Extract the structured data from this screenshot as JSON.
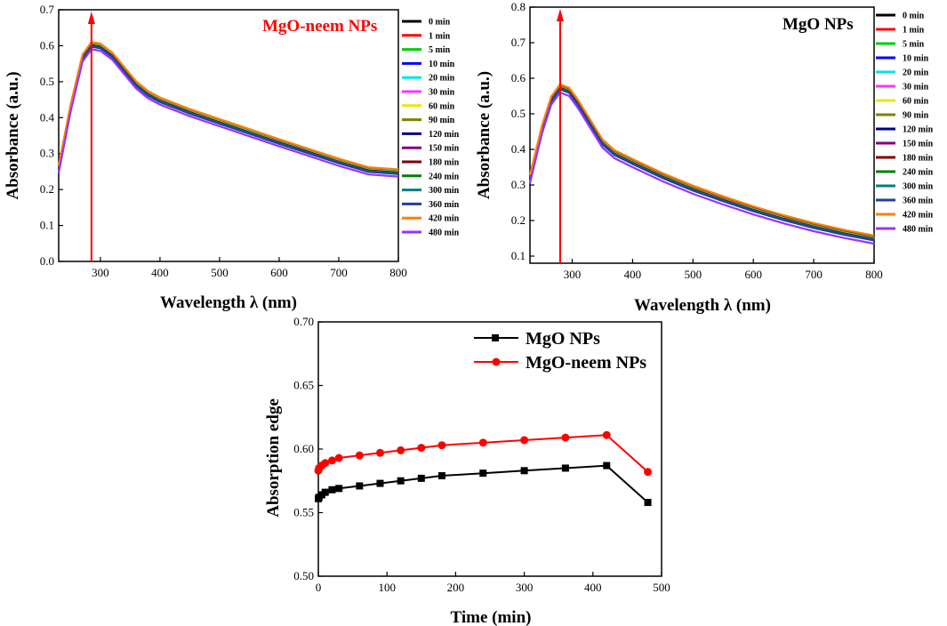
{
  "chart_data": [
    {
      "type": "line",
      "title": "MgO-neem NPs",
      "xlabel": "Wavelength λ (nm)",
      "ylabel": "Absorbance (a.u.)",
      "xlim": [
        230,
        800
      ],
      "ylim": [
        0.0,
        0.7
      ],
      "xticks": [
        "300",
        "400",
        "500",
        "600",
        "700",
        "800"
      ],
      "yticks": [
        "0.0",
        "0.1",
        "0.2",
        "0.3",
        "0.4",
        "0.5",
        "0.6",
        "0.7"
      ],
      "peak_marker_x": 285,
      "legend_position": "right",
      "x": [
        230,
        250,
        270,
        285,
        300,
        320,
        340,
        360,
        380,
        400,
        450,
        500,
        550,
        600,
        650,
        700,
        750,
        800
      ],
      "base_curve": [
        0.25,
        0.42,
        0.56,
        0.594,
        0.59,
        0.565,
        0.525,
        0.485,
        0.458,
        0.44,
        0.408,
        0.38,
        0.352,
        0.324,
        0.297,
        0.27,
        0.246,
        0.24
      ],
      "series": [
        {
          "name": "0 min",
          "color": "#000000",
          "offset": 0.012
        },
        {
          "name": "1 min",
          "color": "#ff0000",
          "offset": 0.011
        },
        {
          "name": "5 min",
          "color": "#00cc00",
          "offset": 0.01
        },
        {
          "name": "10 min",
          "color": "#0000ff",
          "offset": 0.009
        },
        {
          "name": "20 min",
          "color": "#00e5e5",
          "offset": 0.009
        },
        {
          "name": "30 min",
          "color": "#ff33ff",
          "offset": 0.008
        },
        {
          "name": "60 min",
          "color": "#e8e800",
          "offset": 0.008
        },
        {
          "name": "90 min",
          "color": "#808000",
          "offset": 0.007
        },
        {
          "name": "120 min",
          "color": "#000080",
          "offset": 0.007
        },
        {
          "name": "150 min",
          "color": "#800080",
          "offset": 0.006
        },
        {
          "name": "180 min",
          "color": "#800000",
          "offset": 0.006
        },
        {
          "name": "240 min",
          "color": "#008000",
          "offset": 0.005
        },
        {
          "name": "300 min",
          "color": "#008080",
          "offset": 0.004
        },
        {
          "name": "360 min",
          "color": "#1f3fa0",
          "offset": 0.003
        },
        {
          "name": "420 min",
          "color": "#ff8000",
          "offset": 0.016
        },
        {
          "name": "480 min",
          "color": "#9933ff",
          "offset": -0.004
        }
      ]
    },
    {
      "type": "line",
      "title": "MgO NPs",
      "xlabel": "Wavelength λ (nm)",
      "ylabel": "Absorbance (a.u.)",
      "xlim": [
        230,
        800
      ],
      "ylim": [
        0.08,
        0.8
      ],
      "xticks": [
        "300",
        "400",
        "500",
        "600",
        "700",
        "800"
      ],
      "yticks": [
        "0.1",
        "0.2",
        "0.3",
        "0.4",
        "0.5",
        "0.6",
        "0.7",
        "0.8"
      ],
      "peak_marker_x": 280,
      "legend_position": "right",
      "x": [
        230,
        250,
        265,
        280,
        295,
        310,
        330,
        350,
        370,
        400,
        450,
        500,
        550,
        600,
        650,
        700,
        750,
        800
      ],
      "base_curve": [
        0.31,
        0.45,
        0.53,
        0.565,
        0.555,
        0.52,
        0.465,
        0.41,
        0.38,
        0.355,
        0.315,
        0.28,
        0.25,
        0.222,
        0.197,
        0.175,
        0.156,
        0.14
      ],
      "series": [
        {
          "name": "0 min",
          "color": "#000000",
          "offset": 0.013
        },
        {
          "name": "1 min",
          "color": "#ff0000",
          "offset": 0.012
        },
        {
          "name": "5 min",
          "color": "#00cc00",
          "offset": 0.011
        },
        {
          "name": "10 min",
          "color": "#0000ff",
          "offset": 0.01
        },
        {
          "name": "20 min",
          "color": "#00e5e5",
          "offset": 0.01
        },
        {
          "name": "30 min",
          "color": "#ff33ff",
          "offset": 0.009
        },
        {
          "name": "60 min",
          "color": "#e8e800",
          "offset": 0.009
        },
        {
          "name": "90 min",
          "color": "#808000",
          "offset": 0.008
        },
        {
          "name": "120 min",
          "color": "#000080",
          "offset": 0.008
        },
        {
          "name": "150 min",
          "color": "#800080",
          "offset": 0.007
        },
        {
          "name": "180 min",
          "color": "#800000",
          "offset": 0.007
        },
        {
          "name": "240 min",
          "color": "#008000",
          "offset": 0.006
        },
        {
          "name": "300 min",
          "color": "#008080",
          "offset": 0.005
        },
        {
          "name": "360 min",
          "color": "#1f3fa0",
          "offset": 0.004
        },
        {
          "name": "420 min",
          "color": "#ff8000",
          "offset": 0.018
        },
        {
          "name": "480 min",
          "color": "#9933ff",
          "offset": -0.005
        }
      ]
    },
    {
      "type": "line",
      "title": "",
      "xlabel": "Time (min)",
      "ylabel": "Absorption edge",
      "xlim": [
        0,
        500
      ],
      "ylim": [
        0.5,
        0.7
      ],
      "xticks": [
        "0",
        "100",
        "200",
        "300",
        "400",
        "500"
      ],
      "yticks": [
        "0.50",
        "0.55",
        "0.60",
        "0.65",
        "0.70"
      ],
      "legend_position": "top",
      "series": [
        {
          "name": "MgO NPs",
          "color": "#000000",
          "marker": "square",
          "x": [
            0,
            1,
            5,
            10,
            20,
            30,
            60,
            90,
            120,
            150,
            180,
            240,
            300,
            360,
            420,
            480
          ],
          "values": [
            0.561,
            0.562,
            0.564,
            0.566,
            0.568,
            0.569,
            0.571,
            0.573,
            0.575,
            0.577,
            0.579,
            0.581,
            0.583,
            0.585,
            0.587,
            0.558
          ]
        },
        {
          "name": "MgO-neem NPs",
          "color": "#ff0000",
          "marker": "circle",
          "x": [
            0,
            1,
            5,
            10,
            20,
            30,
            60,
            90,
            120,
            150,
            180,
            240,
            300,
            360,
            420,
            480
          ],
          "values": [
            0.583,
            0.585,
            0.587,
            0.589,
            0.591,
            0.593,
            0.595,
            0.597,
            0.599,
            0.601,
            0.603,
            0.605,
            0.607,
            0.609,
            0.611,
            0.582
          ]
        }
      ]
    }
  ]
}
